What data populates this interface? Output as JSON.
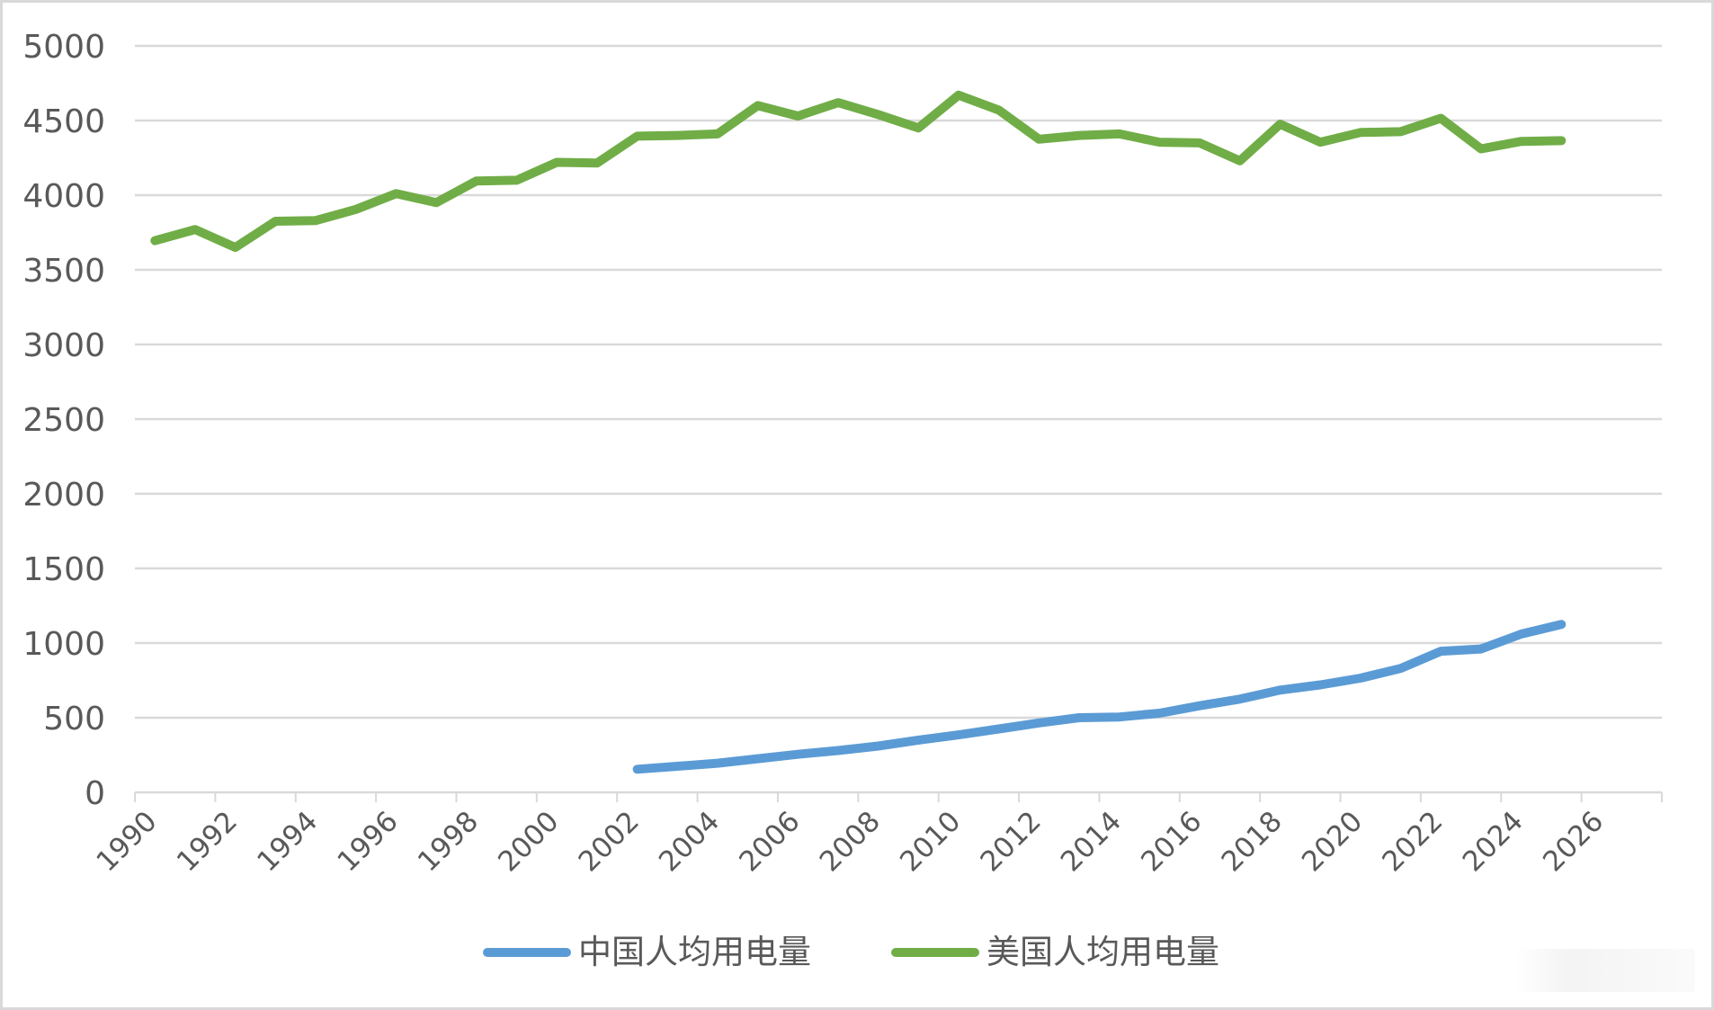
{
  "chart_data": {
    "type": "line",
    "title": "",
    "xlabel": "",
    "ylabel": "",
    "ylim": [
      0,
      5000
    ],
    "yticks": [
      0,
      500,
      1000,
      1500,
      2000,
      2500,
      3000,
      3500,
      4000,
      4500,
      5000
    ],
    "xticks": [
      "1990",
      "1992",
      "1994",
      "1996",
      "1998",
      "2000",
      "2002",
      "2004",
      "2006",
      "2008",
      "2010",
      "2012",
      "2014",
      "2016",
      "2018",
      "2020",
      "2022",
      "2024",
      "2026"
    ],
    "x_range": [
      1990,
      2028
    ],
    "grid": {
      "horizontal": true,
      "vertical": false
    },
    "legend_position": "bottom",
    "series": [
      {
        "name": "中国人均用电量",
        "color": "#5b9bd5",
        "x": [
          2002,
          2003,
          2004,
          2005,
          2006,
          2007,
          2008,
          2009,
          2010,
          2011,
          2012,
          2013,
          2014,
          2015,
          2016,
          2017,
          2018,
          2019,
          2020,
          2021,
          2022,
          2023,
          2024,
          2025
        ],
        "values": [
          155,
          175,
          195,
          225,
          255,
          280,
          310,
          350,
          385,
          425,
          465,
          500,
          505,
          530,
          580,
          625,
          685,
          720,
          765,
          830,
          945,
          960,
          1060,
          1125
        ]
      },
      {
        "name": "美国人均用电量",
        "color": "#70ad47",
        "x": [
          1990,
          1991,
          1992,
          1993,
          1994,
          1995,
          1996,
          1997,
          1998,
          1999,
          2000,
          2001,
          2002,
          2003,
          2004,
          2005,
          2006,
          2007,
          2008,
          2009,
          2010,
          2011,
          2012,
          2013,
          2014,
          2015,
          2016,
          2017,
          2018,
          2019,
          2020,
          2021,
          2022,
          2023,
          2024,
          2025
        ],
        "values": [
          3695,
          3770,
          3650,
          3825,
          3830,
          3905,
          4010,
          3950,
          4095,
          4100,
          4220,
          4215,
          4395,
          4400,
          4410,
          4600,
          4530,
          4620,
          4540,
          4450,
          4670,
          4570,
          4375,
          4400,
          4410,
          4355,
          4350,
          4230,
          4475,
          4355,
          4420,
          4425,
          4515,
          4310,
          4360,
          4365
        ]
      }
    ]
  },
  "legend": {
    "items": [
      {
        "label": "中国人均用电量",
        "color": "#5b9bd5"
      },
      {
        "label": "美国人均用电量",
        "color": "#70ad47"
      }
    ]
  },
  "style": {
    "grid_color": "#d9d9d9",
    "axis_color": "#d9d9d9",
    "text_color": "#595959"
  }
}
